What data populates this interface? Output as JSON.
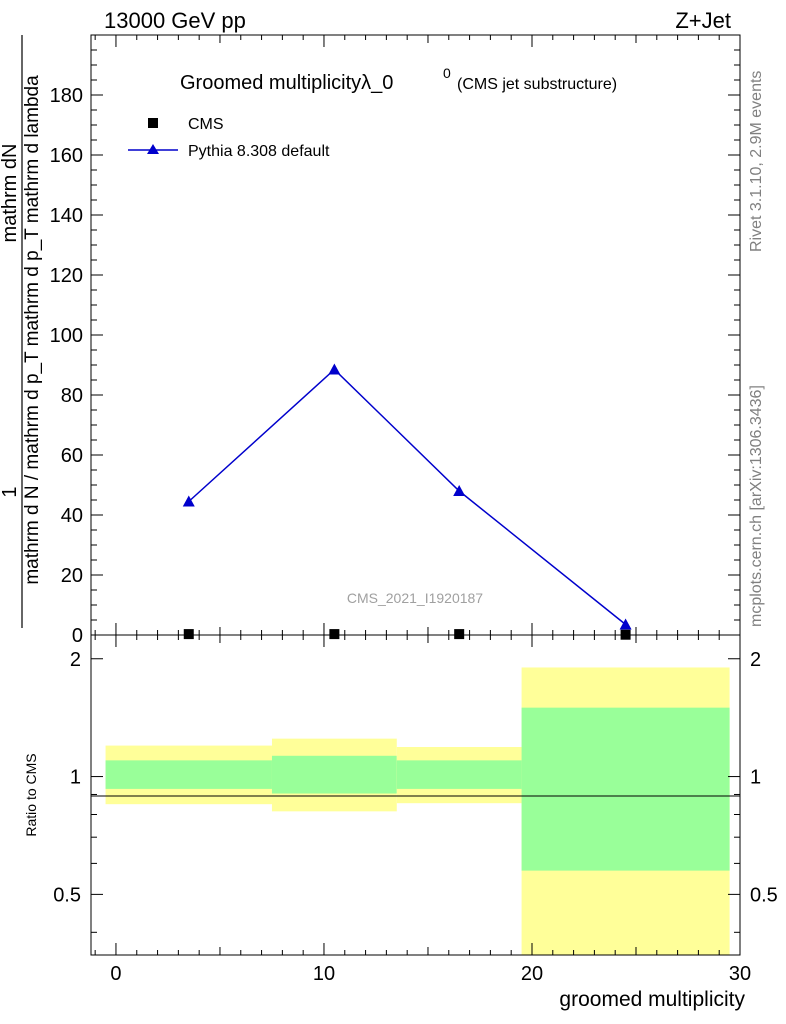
{
  "header": {
    "left": "13000 GeV pp",
    "right": "Z+Jet"
  },
  "side_labels": {
    "rivet": "Rivet 3.1.10,  2.9M events",
    "mcplots": "mcplots.cern.ch [arXiv:1306.3436]"
  },
  "chart_data": [
    {
      "type": "line",
      "title": "Groomed multiplicityλ_0",
      "title_superscript": "0",
      "subtitle": "(CMS jet substructure)",
      "watermark": "CMS_2021_I1920187",
      "ylabel_numerator": "mathrm dN",
      "ylabel_numerator_top": "1",
      "ylabel_denominator": "mathrm d N / mathrm d p_T mathrm d p_T mathrm d lambda",
      "xlim": [
        -1.2,
        30
      ],
      "ylim": [
        0,
        200
      ],
      "yticks": [
        0,
        20,
        40,
        60,
        80,
        100,
        120,
        140,
        160,
        180
      ],
      "legend_position": "top-left",
      "series": [
        {
          "name": "CMS",
          "marker": "square",
          "color": "#000000",
          "x": [
            3.5,
            10.5,
            16.5,
            24.5
          ],
          "values": [
            0.3,
            0.3,
            0.3,
            0.1
          ]
        },
        {
          "name": "Pythia 8.308 default",
          "marker": "triangle",
          "color": "#0000cc",
          "x": [
            3.5,
            10.5,
            16.5,
            24.5
          ],
          "values": [
            44.5,
            88.5,
            48,
            3.5
          ]
        }
      ]
    },
    {
      "type": "area",
      "ylabel": "Ratio to CMS",
      "xlabel": "groomed multiplicity",
      "xlim": [
        -1.2,
        30
      ],
      "ylim": [
        0.35,
        2.3
      ],
      "log_y": true,
      "yticks": [
        0.5,
        1,
        2
      ],
      "ytick_labels": [
        "0.5",
        "1",
        "2"
      ],
      "xticks": [
        0,
        10,
        20,
        30
      ],
      "xtick_labels": [
        "0",
        "10",
        "20",
        "30"
      ],
      "band_colors": {
        "inner": "#99ff99",
        "outer": "#ffff99"
      },
      "bins": [
        {
          "lo": -0.5,
          "hi": 7.5,
          "inner": [
            0.93,
            1.1
          ],
          "outer": [
            0.85,
            1.2
          ]
        },
        {
          "lo": 7.5,
          "hi": 13.5,
          "inner": [
            0.905,
            1.13
          ],
          "outer": [
            0.815,
            1.25
          ]
        },
        {
          "lo": 13.5,
          "hi": 19.5,
          "inner": [
            0.93,
            1.1
          ],
          "outer": [
            0.855,
            1.19
          ]
        },
        {
          "lo": 19.5,
          "hi": 29.5,
          "inner": [
            0.575,
            1.5
          ],
          "outer": [
            0.35,
            1.9
          ]
        }
      ]
    }
  ]
}
